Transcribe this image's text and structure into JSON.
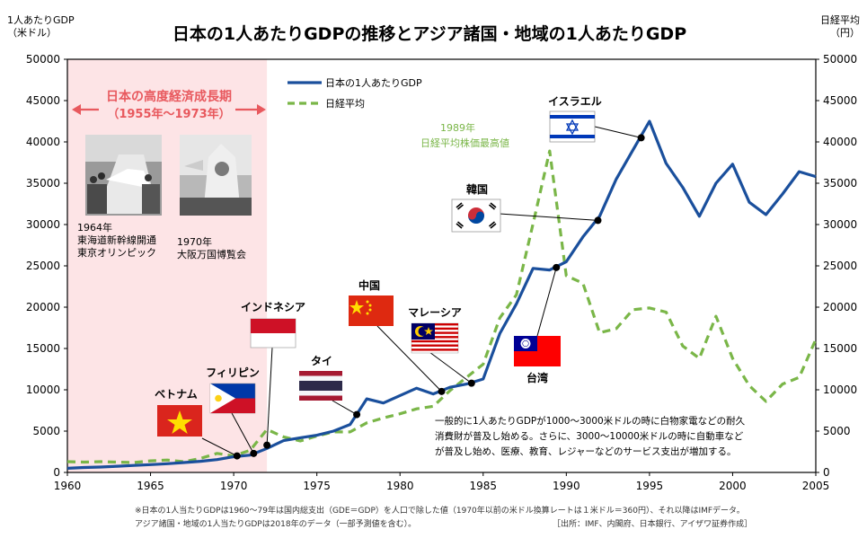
{
  "chart_data": {
    "type": "line",
    "title": "日本の1人あたりGDPの推移とアジア諸国・地域の1人あたりGDP",
    "left_axis_label": [
      "1人あたりGDP",
      "（米ドル）"
    ],
    "right_axis_label": [
      "日経平均",
      "（円）"
    ],
    "ylim": [
      0,
      50000
    ],
    "xlim": [
      1960,
      2005
    ],
    "y_ticks": [
      0,
      5000,
      10000,
      15000,
      20000,
      25000,
      30000,
      35000,
      40000,
      45000,
      50000
    ],
    "x_ticks": [
      1960,
      1965,
      1970,
      1975,
      1980,
      1985,
      1990,
      1995,
      2000,
      2005
    ],
    "grid": false,
    "legend_position": "top-center",
    "series": [
      {
        "name": "日本の1人あたりGDP",
        "color": "#1a4f9c",
        "style": "solid",
        "x": [
          1960,
          1961,
          1962,
          1963,
          1964,
          1965,
          1966,
          1967,
          1968,
          1969,
          1970,
          1971,
          1972,
          1973,
          1974,
          1975,
          1976,
          1977,
          1978,
          1979,
          1980,
          1981,
          1982,
          1983,
          1984,
          1985,
          1986,
          1987,
          1988,
          1989,
          1990,
          1991,
          1992,
          1993,
          1994,
          1995,
          1996,
          1997,
          1998,
          1999,
          2000,
          2001,
          2002,
          2003,
          2004,
          2005
        ],
        "y": [
          500,
          600,
          650,
          750,
          850,
          950,
          1050,
          1200,
          1350,
          1550,
          1900,
          2100,
          2900,
          3850,
          4200,
          4500,
          5000,
          5800,
          8900,
          8400,
          9300,
          10200,
          9500,
          10300,
          10700,
          11300,
          16800,
          20400,
          24700,
          24500,
          25500,
          28500,
          31000,
          35500,
          39000,
          42500,
          37400,
          34500,
          31000,
          35000,
          37300,
          32700,
          31200,
          33700,
          36400,
          35800
        ]
      },
      {
        "name": "日経平均",
        "color": "#7ab648",
        "style": "dashed",
        "x": [
          1960,
          1961,
          1962,
          1963,
          1964,
          1965,
          1966,
          1967,
          1968,
          1969,
          1970,
          1971,
          1972,
          1973,
          1974,
          1975,
          1976,
          1977,
          1978,
          1979,
          1980,
          1981,
          1982,
          1983,
          1984,
          1985,
          1986,
          1987,
          1988,
          1989,
          1990,
          1991,
          1992,
          1993,
          1994,
          1995,
          1996,
          1997,
          1998,
          1999,
          2000,
          2001,
          2002,
          2003,
          2004,
          2005
        ],
        "y": [
          1300,
          1250,
          1300,
          1250,
          1200,
          1400,
          1500,
          1300,
          1700,
          2300,
          2000,
          2700,
          5200,
          4300,
          3800,
          4400,
          4900,
          4900,
          6000,
          6600,
          7100,
          7700,
          8000,
          9900,
          11500,
          13100,
          18700,
          21500,
          30100,
          38900,
          23800,
          22900,
          16900,
          17400,
          19700,
          19900,
          19400,
          15300,
          13800,
          18900,
          13800,
          10500,
          8600,
          10700,
          11500,
          16100
        ]
      }
    ],
    "annotations": {
      "era_band": {
        "x_range": [
          1960,
          1972
        ],
        "title": "日本の高度経済成長期",
        "subtitle": "（1955年～1973年）"
      },
      "peak_label": [
        "1989年",
        "日経平均株価最高値"
      ],
      "photo_captions": [
        {
          "lines": [
            "1964年",
            "東海道新幹線開通",
            "東京オリンピック"
          ]
        },
        {
          "lines": [
            "1970年",
            "大阪万国博覧会"
          ]
        }
      ],
      "countries": [
        {
          "name": "ベトナム",
          "year": 1970.2,
          "gdp": 2000,
          "label_pos": "top"
        },
        {
          "name": "フィリピン",
          "year": 1971.2,
          "gdp": 2300,
          "label_pos": "top"
        },
        {
          "name": "インドネシア",
          "year": 1972,
          "gdp": 3300,
          "label_pos": "top"
        },
        {
          "name": "タイ",
          "year": 1977.4,
          "gdp": 7000,
          "label_pos": "top"
        },
        {
          "name": "中国",
          "year": 1982.5,
          "gdp": 9800,
          "label_pos": "top"
        },
        {
          "name": "マレーシア",
          "year": 1984.3,
          "gdp": 10800,
          "label_pos": "top"
        },
        {
          "name": "台湾",
          "year": 1989.4,
          "gdp": 24800,
          "label_pos": "bottom"
        },
        {
          "name": "韓国",
          "year": 1991.9,
          "gdp": 30500,
          "label_pos": "top"
        },
        {
          "name": "イスラエル",
          "year": 1994.5,
          "gdp": 40500,
          "label_pos": "top"
        }
      ],
      "description": [
        "一般的に1人あたりGDPが1000～3000米ドルの時に白物家電などの耐久",
        "消費財が普及し始める。さらに、3000～10000米ドルの時に自動車など",
        "が普及し始め、医療、教育、レジャーなどのサービス支出が増加する。"
      ]
    },
    "footnotes": [
      "※日本の1人当たりGDPは1960～79年は国内総支出（GDE＝GDP）を人口で除した値（1970年以前の米ドル換算レートは１米ドル＝360円）、それ以降はIMFデータ。",
      "アジア諸国・地域の1人当たりGDPは2018年のデータ（一部予測値を含む）。"
    ],
    "source": "［出所：IMF、内閣府、日本銀行、アイザワ証券作成］"
  }
}
